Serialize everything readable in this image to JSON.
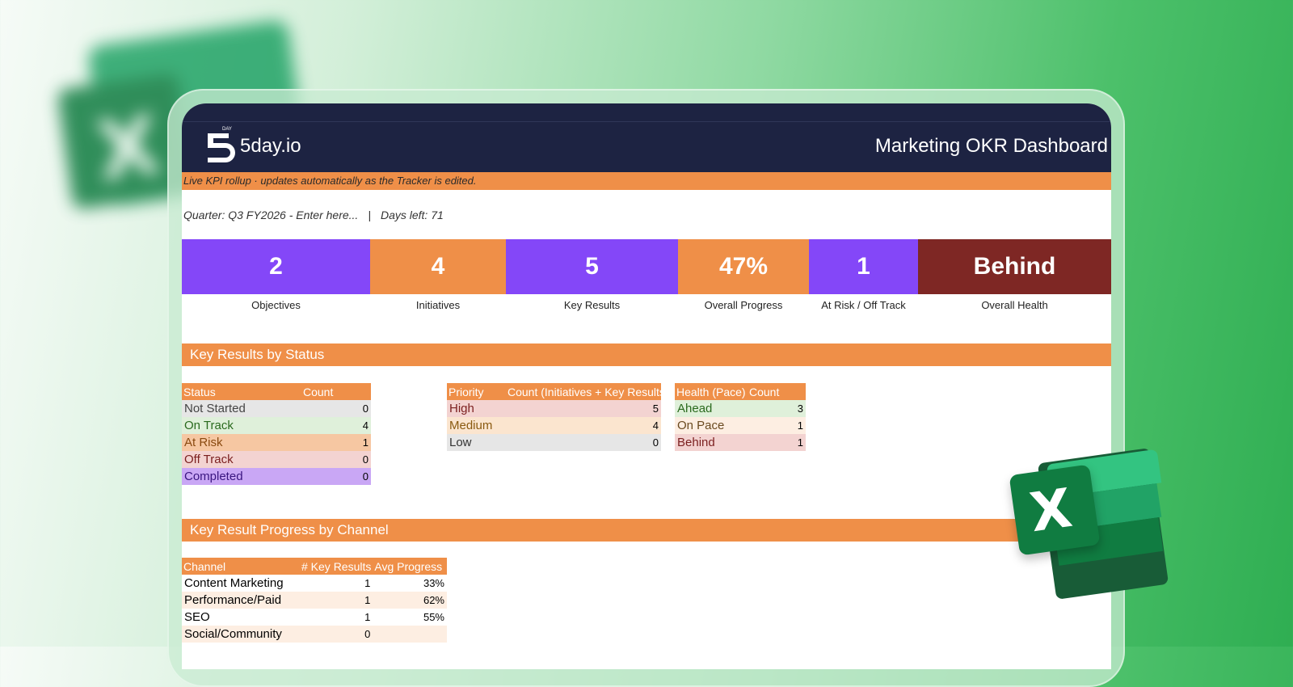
{
  "header": {
    "logo_text": "5day.io",
    "logo_small": "DAY",
    "title": "Marketing OKR Dashboard"
  },
  "notice": "Live KPI rollup  ·  updates automatically as the Tracker is edited.",
  "quarter": {
    "text": "Quarter: Q3 FY2026 - Enter here...",
    "separator": "|",
    "days_left": "Days left: 71"
  },
  "kpis": [
    {
      "value": "2",
      "label": "Objectives",
      "color": "#8447f8"
    },
    {
      "value": "4",
      "label": "Initiatives",
      "color": "#ef8f48"
    },
    {
      "value": "5",
      "label": "Key Results",
      "color": "#8447f8"
    },
    {
      "value": "47%",
      "label": "Overall Progress",
      "color": "#ef8f48"
    },
    {
      "value": "1",
      "label": "At Risk / Off Track",
      "color": "#8447f8"
    },
    {
      "value": "Behind",
      "label": "Overall Health",
      "color": "#7e2724"
    }
  ],
  "sections": {
    "status": "Key Results by Status",
    "channel": "Key Result Progress by Channel"
  },
  "status_table": {
    "headers": [
      "Status",
      "Count"
    ],
    "rows": [
      {
        "label": "Not Started",
        "count": "0",
        "bg": "#e6e6e6",
        "fg": "#444444"
      },
      {
        "label": "On Track",
        "count": "4",
        "bg": "#dff0da",
        "fg": "#2a6a1e"
      },
      {
        "label": "At Risk",
        "count": "1",
        "bg": "#f6c7a2",
        "fg": "#8a4a10"
      },
      {
        "label": "Off Track",
        "count": "0",
        "bg": "#f3d3d1",
        "fg": "#7b1f1f"
      },
      {
        "label": "Completed",
        "count": "0",
        "bg": "#c9a7f5",
        "fg": "#3a1680"
      }
    ]
  },
  "priority_table": {
    "headers": [
      "Priority",
      "Count (Initiatives + Key Results)"
    ],
    "rows": [
      {
        "label": "High",
        "count": "5",
        "bg": "#f3d3d1",
        "fg": "#7b1f1f"
      },
      {
        "label": "Medium",
        "count": "4",
        "bg": "#fbe5cf",
        "fg": "#8a5a10"
      },
      {
        "label": "Low",
        "count": "0",
        "bg": "#e6e6e6",
        "fg": "#333333"
      }
    ]
  },
  "health_table": {
    "headers": [
      "Health (Pace)",
      "Count"
    ],
    "rows": [
      {
        "label": "Ahead",
        "count": "3",
        "bg": "#dff0da",
        "fg": "#2a6a1e"
      },
      {
        "label": "On Pace",
        "count": "1",
        "bg": "#fdeee2",
        "fg": "#6a4a20"
      },
      {
        "label": "Behind",
        "count": "1",
        "bg": "#f3d3d1",
        "fg": "#7b1f1f"
      }
    ]
  },
  "channel_table": {
    "headers": [
      "Channel",
      "# Key Results",
      "Avg Progress"
    ],
    "rows": [
      {
        "channel": "Content Marketing",
        "count": "1",
        "progress": "33%",
        "bg": "#ffffff"
      },
      {
        "channel": "Performance/Paid",
        "count": "1",
        "progress": "62%",
        "bg": "#fdeee2"
      },
      {
        "channel": "SEO",
        "count": "1",
        "progress": "55%",
        "bg": "#ffffff"
      },
      {
        "channel": "Social/Community",
        "count": "0",
        "progress": "",
        "bg": "#fdeee2"
      }
    ]
  },
  "icons": {
    "brand_logo": "5day-logo-icon",
    "app_icon": "excel-icon"
  }
}
